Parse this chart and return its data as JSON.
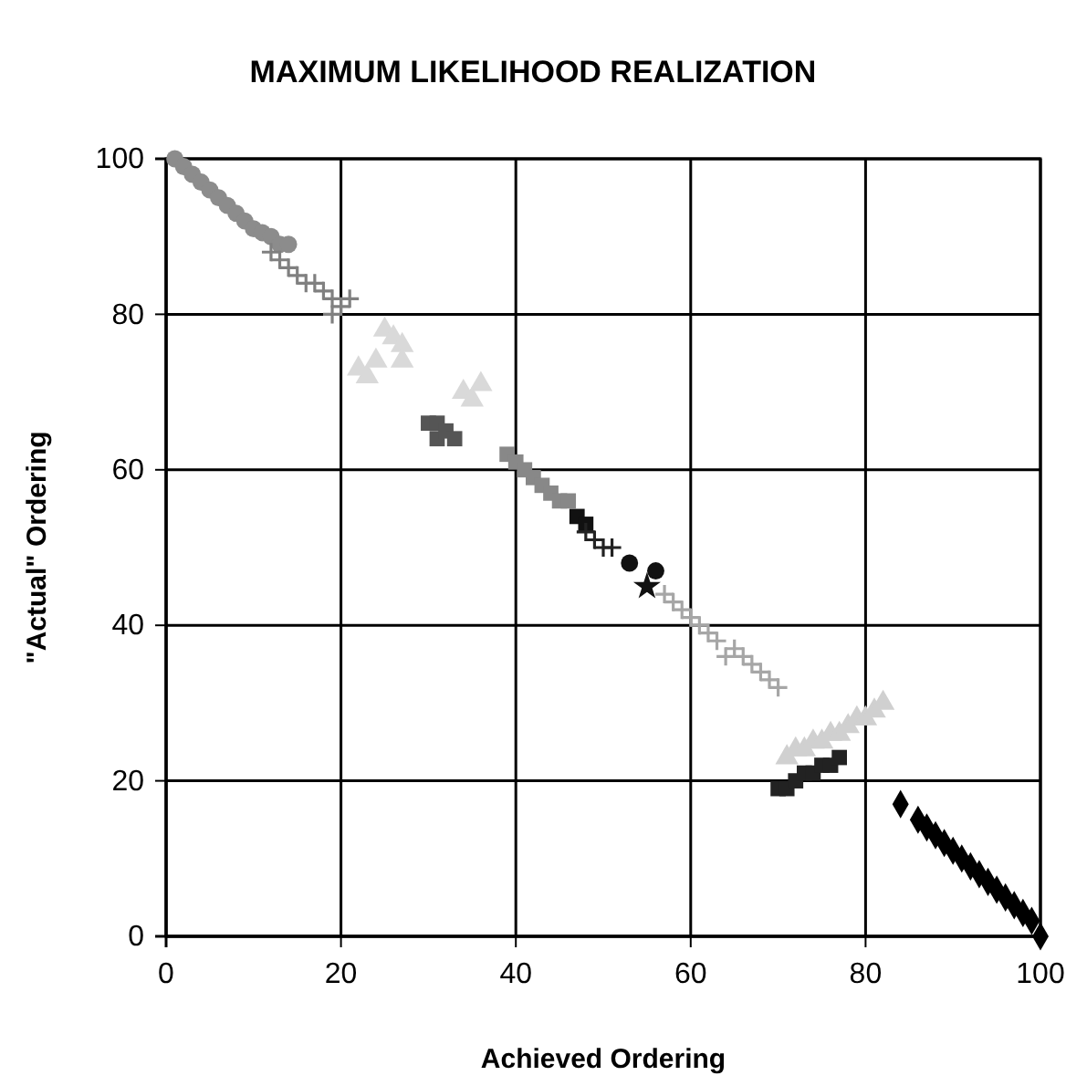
{
  "chart_data": {
    "type": "scatter",
    "title": "MAXIMUM LIKELIHOOD REALIZATION",
    "xlabel": "Achieved Ordering",
    "ylabel": "\"Actual\" Ordering",
    "xlim": [
      0,
      100
    ],
    "ylim": [
      0,
      100
    ],
    "xticks": [
      0,
      20,
      40,
      60,
      80,
      100
    ],
    "yticks": [
      0,
      20,
      40,
      60,
      80,
      100
    ],
    "grid": true,
    "series": [
      {
        "color": "#8c8c8c",
        "marker": "circle",
        "x": [
          1,
          2,
          3,
          4,
          5,
          6,
          7,
          8,
          9,
          10,
          11,
          12,
          13,
          14
        ],
        "values": [
          100,
          99,
          98,
          97,
          96,
          95,
          94,
          93,
          92,
          91,
          90.5,
          90,
          89,
          89
        ]
      },
      {
        "color": "#808080",
        "marker": "cross",
        "x": [
          12,
          13,
          14,
          15,
          16,
          17,
          18,
          19,
          20,
          21,
          19
        ],
        "values": [
          88,
          87,
          86,
          85,
          84,
          84,
          83,
          82,
          81,
          82,
          80
        ]
      },
      {
        "color": "#d9d9d9",
        "marker": "triangle",
        "x": [
          22,
          23,
          24,
          25,
          26,
          27,
          27,
          34,
          36,
          35
        ],
        "values": [
          73,
          72,
          74,
          78,
          77,
          76,
          74,
          70,
          71,
          69
        ]
      },
      {
        "color": "#555555",
        "marker": "square",
        "x": [
          30,
          31,
          31,
          32,
          33
        ],
        "values": [
          66,
          66,
          64,
          65,
          64
        ]
      },
      {
        "color": "#888888",
        "marker": "square",
        "x": [
          39,
          40,
          41,
          42,
          43,
          44,
          45,
          46
        ],
        "values": [
          62,
          61,
          60,
          59,
          58,
          57,
          56,
          56
        ]
      },
      {
        "color": "#111111",
        "marker": "square",
        "x": [
          47,
          48
        ],
        "values": [
          54,
          53
        ]
      },
      {
        "color": "#222222",
        "marker": "cross",
        "x": [
          48,
          49,
          50,
          51
        ],
        "values": [
          52,
          51,
          50,
          50
        ]
      },
      {
        "color": "#111111",
        "marker": "circle",
        "x": [
          53,
          56
        ],
        "values": [
          48,
          47
        ]
      },
      {
        "color": "#111111",
        "marker": "star",
        "x": [
          55
        ],
        "values": [
          45
        ]
      },
      {
        "color": "#a6a6a6",
        "marker": "cross",
        "x": [
          57,
          58,
          59,
          60,
          61,
          62,
          63,
          64,
          65,
          66,
          67,
          68,
          69,
          70
        ],
        "values": [
          44,
          43,
          42,
          41,
          40,
          39,
          38,
          36,
          37,
          36,
          35,
          34,
          33,
          32
        ]
      },
      {
        "color": "#d0d0d0",
        "marker": "triangle",
        "x": [
          71,
          72,
          73,
          74,
          75,
          76,
          77,
          78,
          79,
          80,
          81,
          82
        ],
        "values": [
          23,
          24,
          24,
          25,
          25,
          26,
          26,
          27,
          28,
          28,
          29,
          30
        ]
      },
      {
        "color": "#222222",
        "marker": "square",
        "x": [
          70,
          71,
          72,
          73,
          74,
          75,
          76,
          77
        ],
        "values": [
          19,
          19,
          20,
          21,
          21,
          22,
          22,
          23
        ]
      },
      {
        "color": "#000000",
        "marker": "diamond",
        "x": [
          84,
          86,
          87,
          88,
          89,
          90,
          91,
          92,
          93,
          94,
          95,
          96,
          97,
          98,
          99,
          100
        ],
        "values": [
          17,
          15,
          14,
          13,
          12,
          11,
          10,
          9,
          8,
          7,
          6,
          5,
          4,
          3,
          2,
          0
        ]
      }
    ]
  }
}
